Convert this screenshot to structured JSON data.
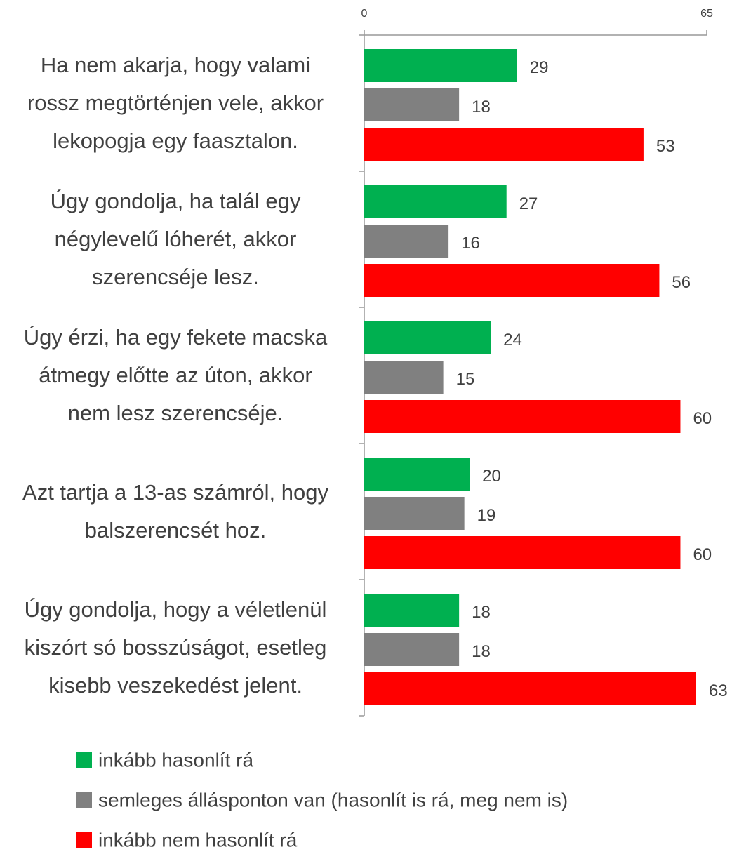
{
  "chart_data": {
    "type": "bar",
    "orientation": "horizontal",
    "categories": [
      "Ha nem akarja, hogy valami\nrossz megtörténjen vele, akkor\nlekopogja egy faasztalon.",
      "Úgy gondolja, ha talál egy\nnégylevelű lóherét, akkor\nszerencséje lesz.",
      "Úgy érzi, ha egy fekete macska\nátmegy előtte az úton, akkor\nnem lesz szerencséje.",
      "Azt tartja a 13-as számról, hogy\nbalszerencsét hoz.",
      "Úgy gondolja, hogy a véletlenül\nkiszórt só bosszúságot, esetleg\nkisebb veszekedést jelent."
    ],
    "series": [
      {
        "name": "inkább hasonlít rá",
        "color": "#00b050",
        "values": [
          29,
          27,
          24,
          20,
          18
        ]
      },
      {
        "name": "semleges állásponton van (hasonlít is rá, meg nem is)",
        "color": "#808080",
        "values": [
          18,
          16,
          15,
          19,
          18
        ]
      },
      {
        "name": "inkább nem hasonlít rá",
        "color": "#ff0000",
        "values": [
          53,
          56,
          60,
          60,
          63
        ]
      }
    ],
    "xlim": [
      0,
      65
    ],
    "xticks": [
      0,
      65
    ],
    "legend": "bottom"
  }
}
